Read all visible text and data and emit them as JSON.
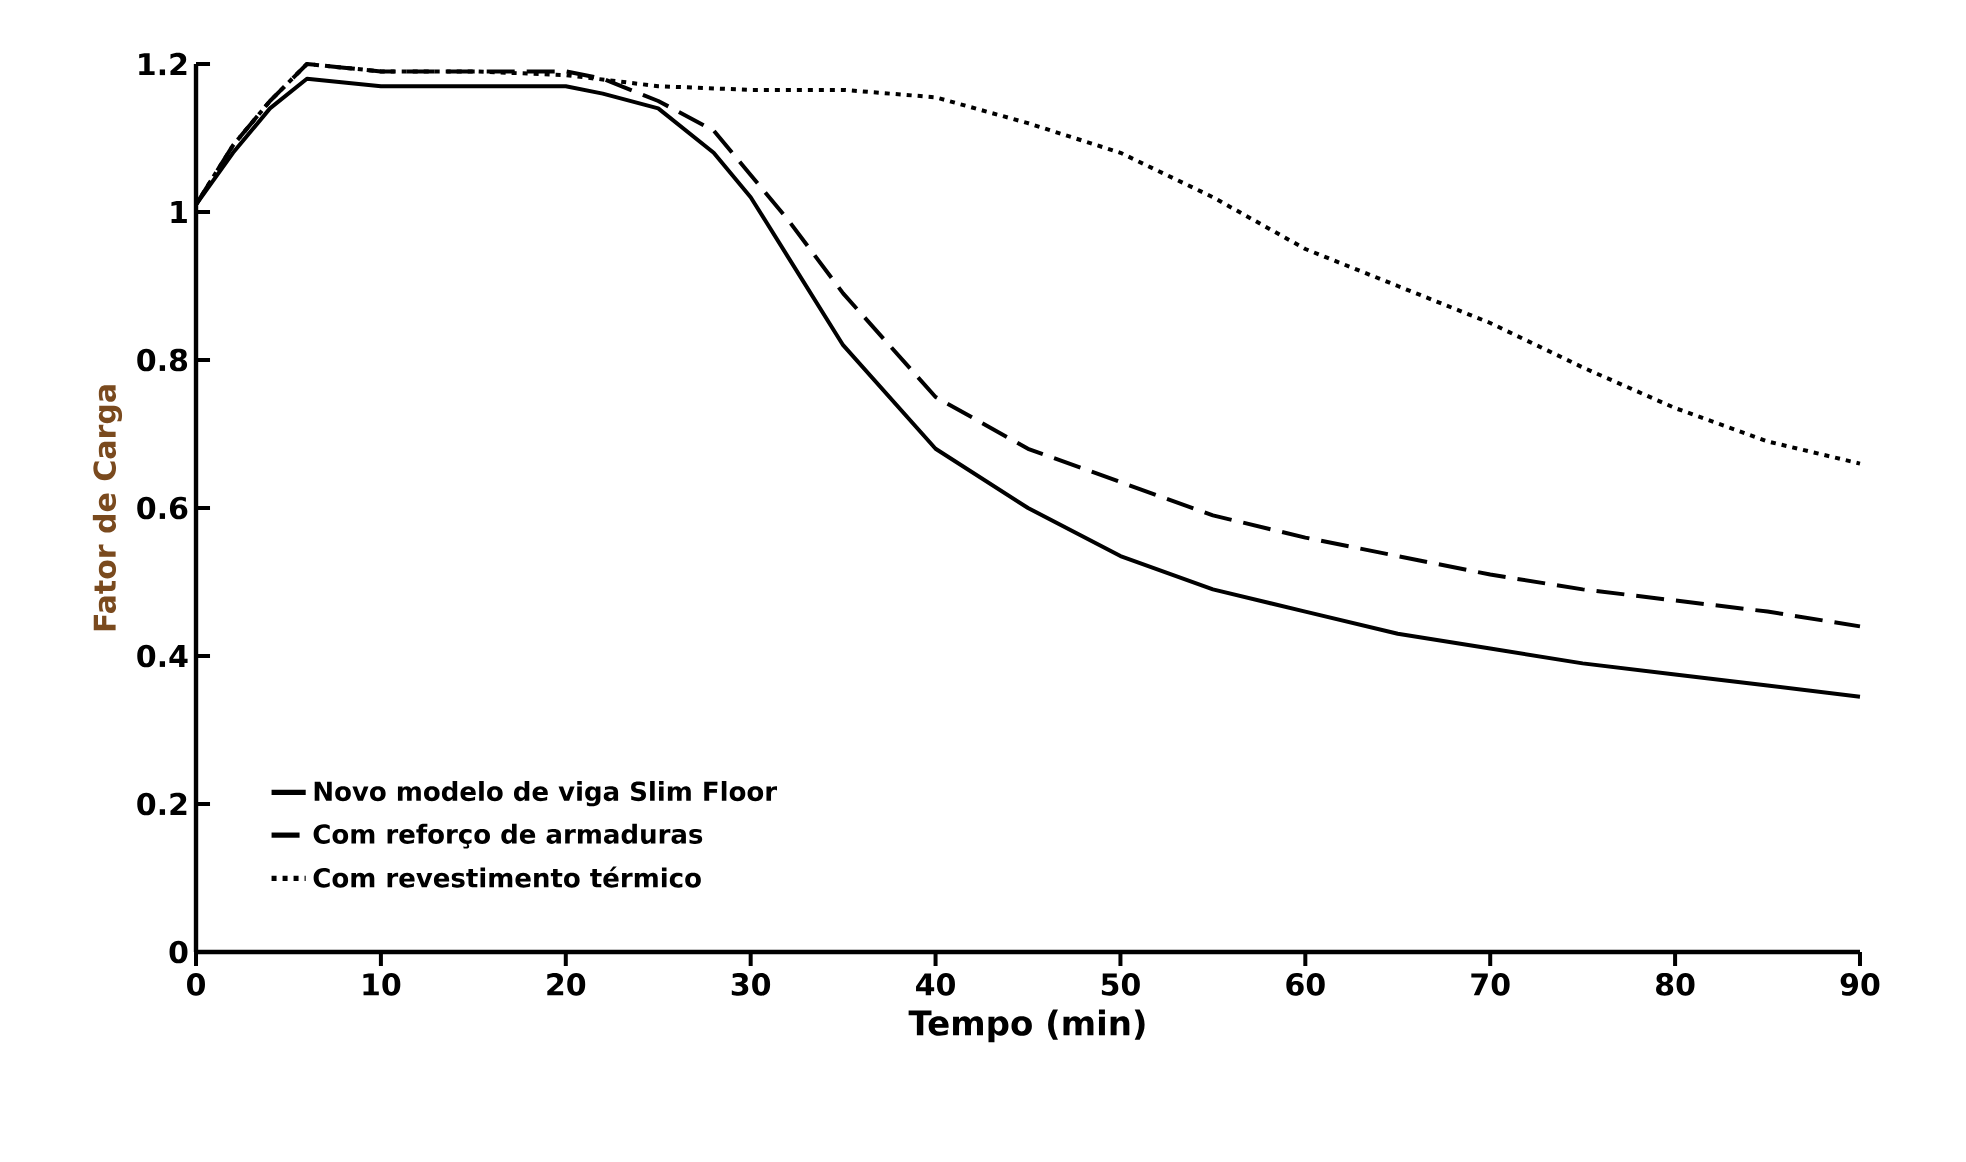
{
  "chart_data": {
    "type": "line",
    "xlabel": "Tempo (min)",
    "ylabel": "Fator de Carga",
    "xlim": [
      0,
      90
    ],
    "ylim": [
      0,
      1.2
    ],
    "xticks": [
      0,
      10,
      20,
      30,
      40,
      50,
      60,
      70,
      80,
      90
    ],
    "yticks": [
      0,
      0.2,
      0.4,
      0.6,
      0.8,
      1,
      1.2
    ],
    "grid": false,
    "legend": "bottom left",
    "marker": "none",
    "series": [
      {
        "name": "Novo modelo de viga Slim Floor",
        "color": "#000000",
        "line_style": "solid",
        "x": [
          0,
          2,
          4,
          6,
          8,
          10,
          15,
          20,
          22,
          25,
          28,
          30,
          32,
          35,
          40,
          45,
          50,
          55,
          60,
          65,
          70,
          75,
          80,
          85,
          90
        ],
        "values": [
          1.01,
          1.08,
          1.14,
          1.18,
          1.175,
          1.17,
          1.17,
          1.17,
          1.16,
          1.14,
          1.08,
          1.02,
          0.94,
          0.82,
          0.68,
          0.6,
          0.535,
          0.49,
          0.46,
          0.43,
          0.41,
          0.39,
          0.375,
          0.36,
          0.345
        ]
      },
      {
        "name": "Com reforço de armaduras",
        "color": "#000000",
        "line_style": "dashed",
        "x": [
          0,
          2,
          4,
          6,
          8,
          10,
          15,
          20,
          22,
          25,
          28,
          30,
          32,
          35,
          40,
          45,
          50,
          55,
          60,
          65,
          70,
          75,
          80,
          85,
          90
        ],
        "values": [
          1.01,
          1.09,
          1.15,
          1.2,
          1.195,
          1.19,
          1.19,
          1.19,
          1.18,
          1.15,
          1.11,
          1.05,
          0.99,
          0.89,
          0.75,
          0.68,
          0.635,
          0.59,
          0.56,
          0.535,
          0.51,
          0.49,
          0.475,
          0.46,
          0.44
        ]
      },
      {
        "name": "Com revestimento térmico",
        "color": "#000000",
        "line_style": "dotted",
        "x": [
          0,
          2,
          4,
          6,
          8,
          10,
          15,
          20,
          25,
          30,
          35,
          40,
          45,
          50,
          55,
          60,
          65,
          70,
          75,
          80,
          85,
          90
        ],
        "values": [
          1.01,
          1.09,
          1.15,
          1.2,
          1.195,
          1.19,
          1.19,
          1.185,
          1.17,
          1.165,
          1.165,
          1.155,
          1.12,
          1.08,
          1.02,
          0.95,
          0.9,
          0.85,
          0.79,
          0.735,
          0.69,
          0.66
        ]
      }
    ]
  }
}
